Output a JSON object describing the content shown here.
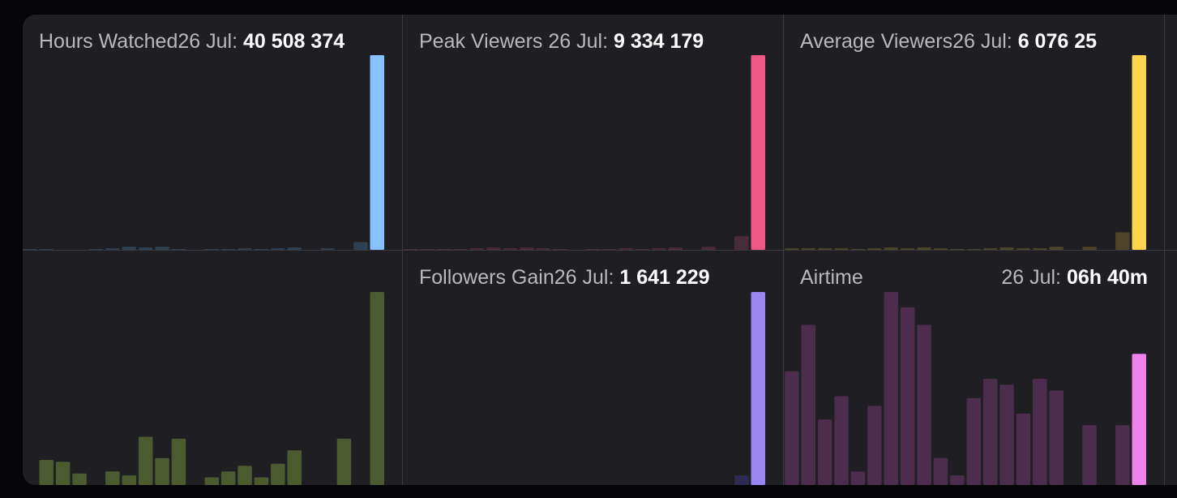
{
  "cards": {
    "hours_watched": {
      "title": "Hours Watched",
      "date": "26 Jul:",
      "value": "40 508 374",
      "color": "#86c2ff"
    },
    "peak_viewers": {
      "title": "Peak Viewers",
      "date": "26 Jul:",
      "value": "9 334 179",
      "color": "#ee5889"
    },
    "average_viewers": {
      "title": "Average Viewers",
      "date": "26 Jul:",
      "value": "6 076 25",
      "color": "#fad54d"
    },
    "unlabeled_green": {
      "color": "#4c5a30"
    },
    "followers_gain": {
      "title": "Followers Gain",
      "date": "26 Jul:",
      "value": "1 641 229",
      "color": "#9a86f2"
    },
    "airtime": {
      "title": "Airtime",
      "date": "26 Jul:",
      "value": "06h 40m",
      "color": "#ef82ea"
    }
  },
  "chart_data": [
    {
      "type": "bar",
      "title": "Hours Watched",
      "values": [
        0.8,
        0.8,
        0.4,
        0.4,
        0,
        0,
        0.4,
        0.8,
        1.6,
        1.2,
        1.6,
        0.4,
        0,
        0.4,
        0.4,
        0.8,
        0.4,
        0.8,
        1.2,
        0,
        0.8,
        0,
        4,
        100
      ],
      "highlight_last": true,
      "base_color": "#2f4052"
    },
    {
      "type": "bar",
      "title": "Peak Viewers",
      "values": [
        0.4,
        0.4,
        0.4,
        0.4,
        0.4,
        0.4,
        0.8,
        1.2,
        0.8,
        1.2,
        0.8,
        0.4,
        0,
        0.4,
        0.4,
        0.8,
        0.4,
        0.8,
        1.2,
        0,
        1.6,
        0,
        7,
        100
      ],
      "highlight_last": true,
      "base_color": "#4a2b3a"
    },
    {
      "type": "bar",
      "title": "Average Viewers",
      "values": [
        0.8,
        0.8,
        0.8,
        0.8,
        0.4,
        0.8,
        1.2,
        0.8,
        1.2,
        0.8,
        0.4,
        0.4,
        0.8,
        1.2,
        0.8,
        0.8,
        1.6,
        0,
        1.6,
        0,
        9,
        100
      ],
      "highlight_last": true,
      "base_color": "#4c4528"
    },
    {
      "type": "bar",
      "values": [
        13,
        12,
        6,
        0,
        7,
        5,
        25,
        14,
        24,
        0,
        4,
        7,
        10,
        4,
        11,
        18,
        0,
        0,
        24,
        0,
        100
      ],
      "highlight_last": false,
      "base_color": "#4c5a30"
    },
    {
      "type": "bar",
      "title": "Followers Gain",
      "values": [
        0,
        0,
        0,
        0,
        0,
        0,
        0,
        0,
        0,
        0,
        0,
        0,
        0,
        0,
        0,
        0,
        0,
        0,
        0,
        0,
        5,
        100
      ],
      "highlight_last": true,
      "base_color": "#2d2b55"
    },
    {
      "type": "bar",
      "title": "Airtime",
      "values": [
        59,
        83,
        34,
        46,
        7,
        41,
        100,
        92,
        83,
        14,
        5,
        45,
        55,
        52,
        37,
        55,
        49,
        0,
        31,
        0,
        31,
        68
      ],
      "highlight_last": true,
      "base_color": "#4c2d4e"
    }
  ]
}
